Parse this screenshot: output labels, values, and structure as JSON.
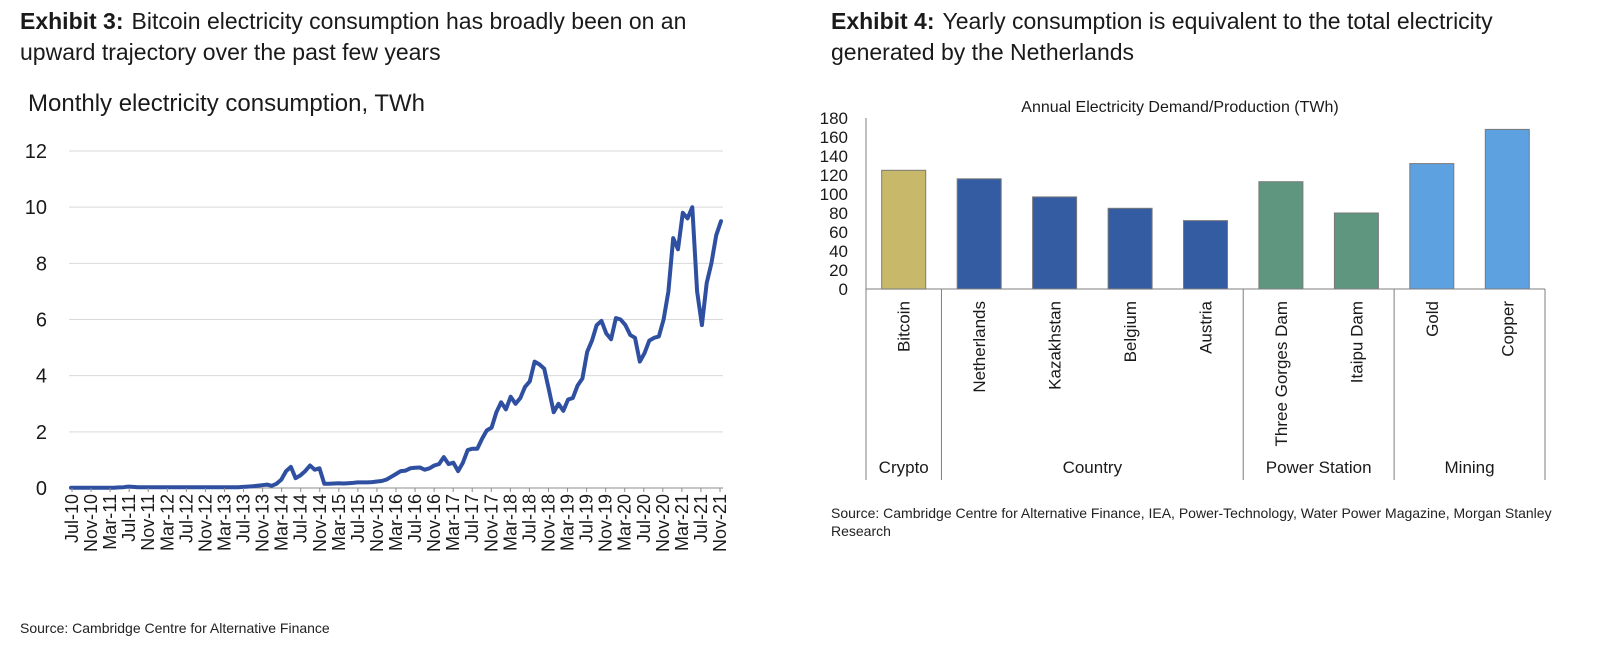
{
  "exhibits": [
    {
      "label": "Exhibit 3:",
      "title": "Bitcoin electricity consumption has broadly been on an upward trajectory over the past few years",
      "source": "Source: Cambridge Centre for Alternative Finance"
    },
    {
      "label": "Exhibit 4:",
      "title": "Yearly consumption is equivalent to the total electricity generated by the Netherlands",
      "source": "Source: Cambridge Centre for Alternative Finance, IEA, Power-Technology, Water Power Magazine, Morgan Stanley Research"
    }
  ],
  "colors": {
    "line": "#2F4FA0",
    "grid": "#D9D9D9",
    "crypto": "#C8B96A",
    "country": "#335CA3",
    "power_station": "#5E9680",
    "mining": "#5DA1E0"
  },
  "chart_data": [
    {
      "type": "line",
      "title": "Monthly electricity consumption, TWh",
      "xlabel": "",
      "ylabel": "",
      "ylim": [
        0,
        12
      ],
      "yticks": [
        "0",
        "2",
        "4",
        "6",
        "8",
        "10",
        "12"
      ],
      "grid": true,
      "xticks": [
        "Jul-10",
        "Nov-10",
        "Mar-11",
        "Jul-11",
        "Nov-11",
        "Mar-12",
        "Jul-12",
        "Nov-12",
        "Mar-13",
        "Jul-13",
        "Nov-13",
        "Mar-14",
        "Jul-14",
        "Nov-14",
        "Mar-15",
        "Jul-15",
        "Nov-15",
        "Mar-16",
        "Jul-16",
        "Nov-16",
        "Mar-17",
        "Jul-17",
        "Nov-17",
        "Mar-18",
        "Jul-18",
        "Nov-18",
        "Mar-19",
        "Jul-19",
        "Nov-19",
        "Mar-20",
        "Jul-20",
        "Nov-20",
        "Mar-21",
        "Jul-21",
        "Nov-21"
      ],
      "series": [
        {
          "name": "Monthly electricity consumption",
          "start": "Jul-10",
          "values": [
            0.01,
            0.01,
            0.01,
            0.01,
            0.01,
            0.01,
            0.01,
            0.01,
            0.01,
            0.01,
            0.02,
            0.03,
            0.05,
            0.04,
            0.03,
            0.03,
            0.03,
            0.03,
            0.03,
            0.03,
            0.03,
            0.03,
            0.03,
            0.03,
            0.03,
            0.03,
            0.03,
            0.03,
            0.03,
            0.03,
            0.03,
            0.03,
            0.03,
            0.03,
            0.03,
            0.03,
            0.04,
            0.05,
            0.06,
            0.08,
            0.1,
            0.12,
            0.08,
            0.15,
            0.3,
            0.6,
            0.75,
            0.35,
            0.45,
            0.6,
            0.8,
            0.65,
            0.7,
            0.15,
            0.15,
            0.16,
            0.17,
            0.16,
            0.17,
            0.18,
            0.2,
            0.2,
            0.2,
            0.21,
            0.23,
            0.25,
            0.3,
            0.4,
            0.5,
            0.6,
            0.62,
            0.7,
            0.72,
            0.73,
            0.65,
            0.7,
            0.8,
            0.85,
            1.1,
            0.85,
            0.9,
            0.6,
            0.9,
            1.35,
            1.4,
            1.4,
            1.75,
            2.05,
            2.15,
            2.7,
            3.05,
            2.8,
            3.25,
            3.0,
            3.2,
            3.6,
            3.8,
            4.5,
            4.4,
            4.25,
            3.5,
            2.7,
            3.0,
            2.75,
            3.15,
            3.2,
            3.65,
            3.9,
            4.85,
            5.25,
            5.8,
            5.95,
            5.5,
            5.3,
            6.05,
            6.0,
            5.8,
            5.45,
            5.35,
            4.5,
            4.8,
            5.25,
            5.35,
            5.4,
            6.0,
            7.0,
            8.9,
            8.5,
            9.8,
            9.6,
            10.0,
            7.0,
            5.8,
            7.3,
            8.0,
            9.0,
            9.5
          ]
        }
      ]
    },
    {
      "type": "bar",
      "title": "Annual Electricity Demand/Production (TWh)",
      "ylim": [
        0,
        180
      ],
      "yticks": [
        "0",
        "20",
        "40",
        "60",
        "80",
        "100",
        "120",
        "140",
        "160",
        "180"
      ],
      "categories": [
        "Bitcoin",
        "Netherlands",
        "Kazakhstan",
        "Belgium",
        "Austria",
        "Three Gorges Dam",
        "Itaipu Dam",
        "Gold",
        "Copper"
      ],
      "values": [
        125,
        116,
        97,
        85,
        72,
        113,
        80,
        132,
        168
      ],
      "groups": [
        {
          "name": "Crypto",
          "count": 1
        },
        {
          "name": "Country",
          "count": 4
        },
        {
          "name": "Power Station",
          "count": 2
        },
        {
          "name": "Mining",
          "count": 2
        }
      ]
    }
  ]
}
